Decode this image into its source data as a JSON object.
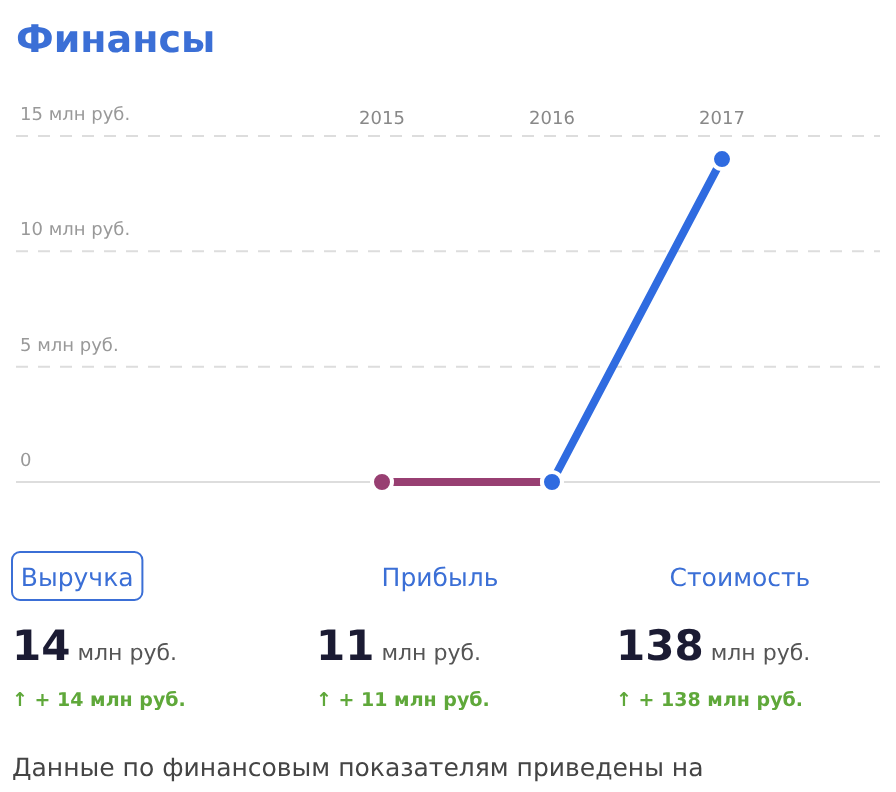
{
  "chart_data": {
    "type": "line",
    "title": "Финансы",
    "categories": [
      "2015",
      "2016",
      "2017"
    ],
    "series": [
      {
        "color": "#983f72",
        "values": [
          0,
          0,
          null
        ]
      },
      {
        "color": "#2f6be0",
        "values": [
          null,
          0,
          14
        ]
      }
    ],
    "ylim": [
      0,
      15
    ],
    "yticks": [
      {
        "value": 0,
        "label": "0"
      },
      {
        "value": 5,
        "label": "5 млн руб."
      },
      {
        "value": 10,
        "label": "10 млн руб."
      },
      {
        "value": 15,
        "label": "15 млн руб."
      }
    ],
    "grid": "y",
    "marker": "circle",
    "line_style": "solid",
    "annotations": [
      "Выручка",
      "Прибыль",
      "Стоимость",
      "14 млн руб.",
      "11 млн руб.",
      "138 млн руб.",
      "↑ + 14 млн руб.",
      "↑ + 11 млн руб.",
      "↑ + 138 млн руб.",
      "Данные по финансовым показателям приведены на"
    ]
  }
}
